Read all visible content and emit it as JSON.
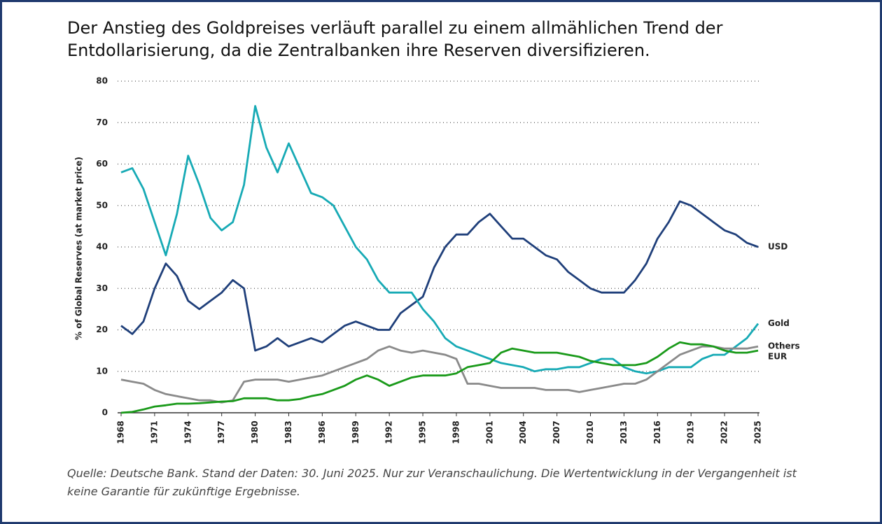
{
  "chart_data": {
    "type": "line",
    "title": "Der Anstieg des Goldpreises verläuft parallel zu einem allmählichen Trend der Entdollarisierung, da die Zentralbanken ihre Reserven diversifizieren.",
    "y_label": "% of Global Reserves (at market price)",
    "source": "Quelle: Deutsche Bank. Stand der Daten: 30. Juni 2025. Nur zur Veranschaulichung. Die Wertentwicklung in der Vergangenheit ist keine Garantie für zukünftige Ergebnisse.",
    "x": [
      1968,
      1969,
      1970,
      1971,
      1972,
      1973,
      1974,
      1975,
      1976,
      1977,
      1978,
      1979,
      1980,
      1981,
      1982,
      1983,
      1984,
      1985,
      1986,
      1987,
      1988,
      1989,
      1990,
      1991,
      1992,
      1993,
      1994,
      1995,
      1996,
      1997,
      1998,
      1999,
      2000,
      2001,
      2002,
      2003,
      2004,
      2005,
      2006,
      2007,
      2008,
      2009,
      2010,
      2011,
      2012,
      2013,
      2014,
      2015,
      2016,
      2017,
      2018,
      2019,
      2020,
      2021,
      2022,
      2023,
      2024,
      2025
    ],
    "xlim": [
      1968,
      2025
    ],
    "xticks": [
      1968,
      1971,
      1974,
      1977,
      1980,
      1983,
      1986,
      1989,
      1992,
      1995,
      1998,
      2001,
      2004,
      2007,
      2010,
      2013,
      2016,
      2019,
      2022,
      2025
    ],
    "ylim": [
      0,
      80
    ],
    "yticks": [
      0,
      10,
      20,
      30,
      40,
      50,
      60,
      70,
      80
    ],
    "grid": true,
    "series": [
      {
        "name": "USD",
        "color": "#1f3f7a",
        "values": [
          21,
          19,
          22,
          30,
          36,
          33,
          27,
          25,
          27,
          29,
          32,
          30,
          15,
          16,
          18,
          16,
          17,
          18,
          17,
          19,
          21,
          22,
          21,
          20,
          20,
          24,
          26,
          28,
          35,
          40,
          43,
          43,
          46,
          48,
          45,
          42,
          42,
          40,
          38,
          37,
          34,
          32,
          30,
          29,
          29,
          29,
          32,
          36,
          42,
          46,
          51,
          50,
          48,
          46,
          44,
          43,
          41,
          40
        ]
      },
      {
        "name": "Gold",
        "color": "#17aab5",
        "values": [
          58,
          59,
          54,
          46,
          38,
          48,
          62,
          55,
          47,
          44,
          46,
          55,
          74,
          64,
          58,
          65,
          59,
          53,
          52,
          50,
          45,
          40,
          37,
          32,
          29,
          29,
          29,
          25,
          22,
          18,
          16,
          15,
          14,
          13,
          12,
          11.5,
          11,
          10,
          10.5,
          10.5,
          11,
          11,
          12,
          13,
          13,
          11,
          10,
          9.5,
          10,
          11,
          11,
          11,
          13,
          14,
          14,
          16,
          18,
          21.5
        ]
      },
      {
        "name": "Others",
        "color": "#8a8a8a",
        "values": [
          8,
          7.5,
          7,
          5.5,
          4.5,
          4,
          3.5,
          3,
          3,
          2.5,
          3,
          7.5,
          8,
          8,
          8,
          7.5,
          8,
          8.5,
          9,
          10,
          11,
          12,
          13,
          15,
          16,
          15,
          14.5,
          15,
          14.5,
          14,
          13,
          7,
          7,
          6.5,
          6,
          6,
          6,
          6,
          5.5,
          5.5,
          5.5,
          5,
          5.5,
          6,
          6.5,
          7,
          7,
          8,
          10,
          12,
          14,
          15,
          16,
          16,
          15.5,
          15.5,
          15.5,
          16
        ]
      },
      {
        "name": "EUR",
        "color": "#1a9a1a",
        "values": [
          0,
          0.2,
          0.8,
          1.5,
          1.8,
          2.2,
          2.2,
          2.3,
          2.5,
          2.7,
          2.8,
          3.5,
          3.5,
          3.5,
          3,
          3,
          3.3,
          4,
          4.5,
          5.5,
          6.5,
          8,
          9,
          8,
          6.5,
          7.5,
          8.5,
          9,
          9,
          9,
          9.5,
          11,
          11.5,
          12,
          14.5,
          15.5,
          15,
          14.5,
          14.5,
          14.5,
          14,
          13.5,
          12.5,
          12,
          11.5,
          11.5,
          11.5,
          12,
          13.5,
          15.5,
          17,
          16.5,
          16.5,
          16,
          15,
          14.5,
          14.5,
          15
        ]
      }
    ]
  }
}
